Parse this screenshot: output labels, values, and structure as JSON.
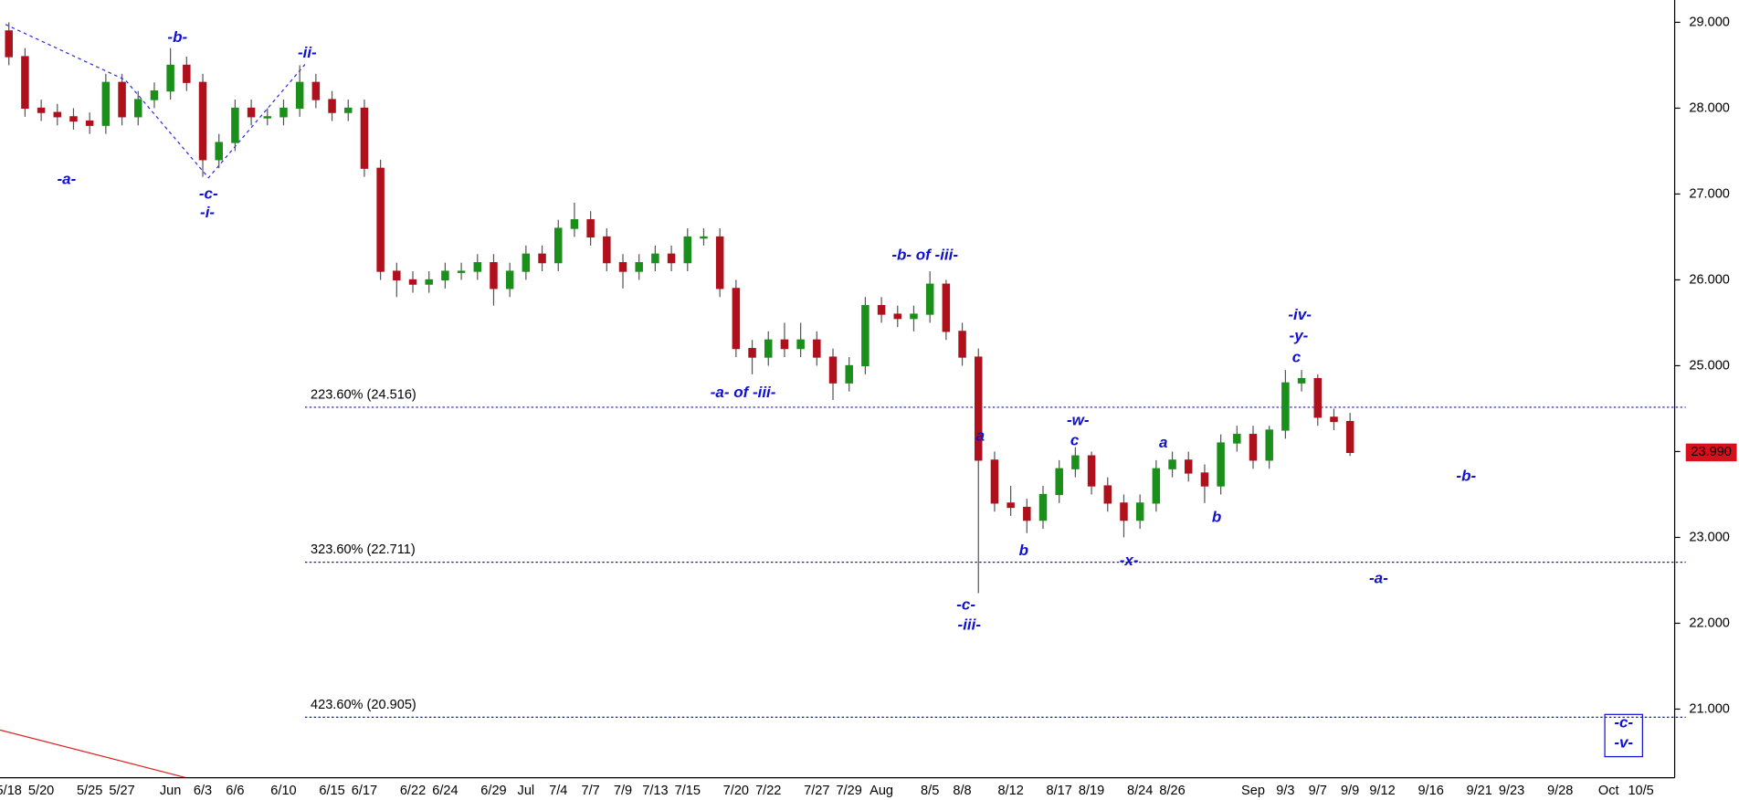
{
  "chart_data": {
    "type": "candlestick",
    "categories": [
      "5/18",
      null,
      "5/20",
      null,
      null,
      "5/25",
      null,
      "5/27",
      null,
      null,
      "Jun",
      null,
      "6/3",
      null,
      "6/6",
      null,
      null,
      "6/10",
      null,
      null,
      "6/15",
      null,
      "6/17",
      null,
      null,
      "6/22",
      null,
      "6/24",
      null,
      null,
      "6/29",
      null,
      "Jul",
      null,
      "7/4",
      null,
      "7/7",
      null,
      "7/9",
      null,
      "7/13",
      null,
      "7/15",
      null,
      null,
      "7/20",
      null,
      "7/22",
      null,
      null,
      "7/27",
      null,
      "7/29",
      null,
      "Aug",
      null,
      null,
      "8/5",
      null,
      "8/8",
      null,
      null,
      "8/12",
      null,
      null,
      "8/17",
      null,
      "8/19",
      null,
      null,
      "8/24",
      null,
      "8/26",
      null,
      null,
      null,
      null,
      "Sep",
      null,
      "9/3",
      null,
      "9/7",
      null,
      "9/9",
      null,
      "9/12",
      null,
      null,
      "9/16",
      null,
      null,
      "9/21",
      null,
      "9/23",
      null,
      null,
      "9/28",
      null,
      null,
      "Oct",
      null,
      "10/5"
    ],
    "open": [
      28.9,
      28.6,
      28.0,
      27.95,
      27.9,
      27.85,
      27.8,
      28.3,
      27.9,
      28.1,
      28.2,
      28.5,
      28.3,
      27.4,
      27.6,
      28.0,
      27.9,
      27.9,
      28.0,
      28.3,
      28.1,
      27.95,
      28.0,
      27.3,
      26.1,
      26.0,
      25.95,
      26.0,
      26.1,
      26.1,
      26.2,
      25.9,
      26.1,
      26.3,
      26.2,
      26.6,
      26.7,
      26.5,
      26.2,
      26.1,
      26.2,
      26.3,
      26.2,
      26.5,
      26.5,
      25.9,
      25.2,
      25.1,
      25.3,
      25.2,
      25.3,
      25.1,
      24.8,
      25.0,
      25.7,
      25.6,
      25.55,
      25.6,
      25.95,
      25.4,
      25.1,
      23.9,
      23.4,
      23.35,
      23.2,
      23.5,
      23.8,
      23.95,
      23.6,
      23.4,
      23.2,
      23.4,
      23.8,
      23.9,
      23.75,
      23.6,
      24.1,
      24.2,
      23.9,
      24.25,
      24.8,
      24.85,
      24.4,
      24.35,
      null,
      null,
      null,
      null,
      null,
      null,
      null,
      null,
      null,
      null,
      null,
      null,
      null,
      null,
      null,
      null,
      null,
      null
    ],
    "high": [
      29.0,
      28.7,
      28.1,
      28.05,
      28.0,
      27.95,
      28.4,
      28.4,
      28.2,
      28.3,
      28.7,
      28.6,
      28.4,
      27.7,
      28.1,
      28.1,
      28.0,
      28.1,
      28.5,
      28.4,
      28.2,
      28.1,
      28.1,
      27.4,
      26.2,
      26.1,
      26.1,
      26.2,
      26.2,
      26.3,
      26.3,
      26.2,
      26.4,
      26.4,
      26.7,
      26.9,
      26.8,
      26.6,
      26.3,
      26.3,
      26.4,
      26.4,
      26.6,
      26.6,
      26.6,
      26.0,
      25.3,
      25.4,
      25.5,
      25.5,
      25.4,
      25.2,
      25.1,
      25.8,
      25.8,
      25.7,
      25.7,
      26.1,
      26.0,
      25.5,
      25.2,
      24.0,
      23.6,
      23.45,
      23.6,
      23.9,
      24.05,
      24.0,
      23.7,
      23.5,
      23.5,
      23.9,
      24.0,
      24.0,
      23.85,
      24.2,
      24.3,
      24.3,
      24.3,
      24.95,
      24.95,
      24.9,
      24.5,
      24.45,
      null,
      null,
      null,
      null,
      null,
      null,
      null,
      null,
      null,
      null,
      null,
      null,
      null,
      null,
      null,
      null,
      null,
      null
    ],
    "low": [
      28.5,
      27.9,
      27.85,
      27.8,
      27.75,
      27.7,
      27.7,
      27.8,
      27.8,
      28.0,
      28.1,
      28.2,
      27.2,
      27.3,
      27.5,
      27.8,
      27.8,
      27.8,
      27.9,
      28.0,
      27.85,
      27.85,
      27.2,
      26.0,
      25.8,
      25.85,
      25.85,
      25.9,
      26.0,
      26.0,
      25.7,
      25.8,
      26.0,
      26.1,
      26.1,
      26.5,
      26.4,
      26.1,
      25.9,
      26.0,
      26.1,
      26.1,
      26.1,
      26.4,
      25.8,
      25.1,
      24.9,
      25.0,
      25.1,
      25.1,
      25.0,
      24.6,
      24.7,
      24.9,
      25.5,
      25.45,
      25.4,
      25.5,
      25.3,
      25.0,
      22.35,
      23.3,
      23.25,
      23.05,
      23.1,
      23.4,
      23.7,
      23.5,
      23.3,
      23.0,
      23.1,
      23.3,
      23.7,
      23.65,
      23.4,
      23.5,
      24.0,
      23.8,
      23.8,
      24.15,
      24.7,
      24.3,
      24.25,
      23.95,
      null,
      null,
      null,
      null,
      null,
      null,
      null,
      null,
      null,
      null,
      null,
      null,
      null,
      null,
      null,
      null,
      null,
      null
    ],
    "close": [
      28.6,
      28.0,
      27.95,
      27.9,
      27.85,
      27.8,
      28.3,
      27.9,
      28.1,
      28.2,
      28.5,
      28.3,
      27.4,
      27.6,
      28.0,
      27.9,
      27.9,
      28.0,
      28.3,
      28.1,
      27.95,
      28.0,
      27.3,
      26.1,
      26.0,
      25.95,
      26.0,
      26.1,
      26.1,
      26.2,
      25.9,
      26.1,
      26.3,
      26.2,
      26.6,
      26.7,
      26.5,
      26.2,
      26.1,
      26.2,
      26.3,
      26.2,
      26.5,
      26.5,
      25.9,
      25.2,
      25.1,
      25.3,
      25.2,
      25.3,
      25.1,
      24.8,
      25.0,
      25.7,
      25.6,
      25.55,
      25.6,
      25.95,
      25.4,
      25.1,
      23.9,
      23.4,
      23.35,
      23.2,
      23.5,
      23.8,
      23.95,
      23.6,
      23.4,
      23.2,
      23.4,
      23.8,
      23.9,
      23.75,
      23.6,
      24.1,
      24.2,
      23.9,
      24.25,
      24.8,
      24.85,
      24.4,
      24.35,
      23.99,
      null,
      null,
      null,
      null,
      null,
      null,
      null,
      null,
      null,
      null,
      null,
      null,
      null,
      null,
      null,
      null,
      null,
      null
    ],
    "up_color": "#1a8f1a",
    "down_color": "#b0101c",
    "ylim": [
      20.2,
      29.26
    ],
    "yticks": [
      {
        "value": 21,
        "label": "21.000"
      },
      {
        "value": 22,
        "label": "22.000"
      },
      {
        "value": 23,
        "label": "23.000"
      },
      {
        "value": 24,
        "label": "24.000"
      },
      {
        "value": 25,
        "label": "25.000"
      },
      {
        "value": 26,
        "label": "26.000"
      },
      {
        "value": 27,
        "label": "27.000"
      },
      {
        "value": 28,
        "label": "28.000"
      },
      {
        "value": 29,
        "label": "29.000"
      }
    ],
    "last_price": {
      "value": 23.99,
      "label": "23.990"
    },
    "levels": [
      {
        "value": 24.516,
        "label": "223.60% (24.516)"
      },
      {
        "value": 22.711,
        "label": "323.60% (22.711)"
      },
      {
        "value": 20.905,
        "label": "423.60% (20.905)"
      }
    ],
    "annotations": [
      "-b-",
      "-ii-",
      "-a-",
      "-c-",
      "-i-",
      "-b- of -iii-",
      "-a- of -iii-",
      "a",
      "-w-",
      "c",
      "a",
      "-iv-",
      "-y-",
      "c",
      "b",
      "-x-",
      "b",
      "-c-",
      "-iii-",
      "-b-",
      "-a-",
      "-c-",
      "-v-"
    ]
  }
}
